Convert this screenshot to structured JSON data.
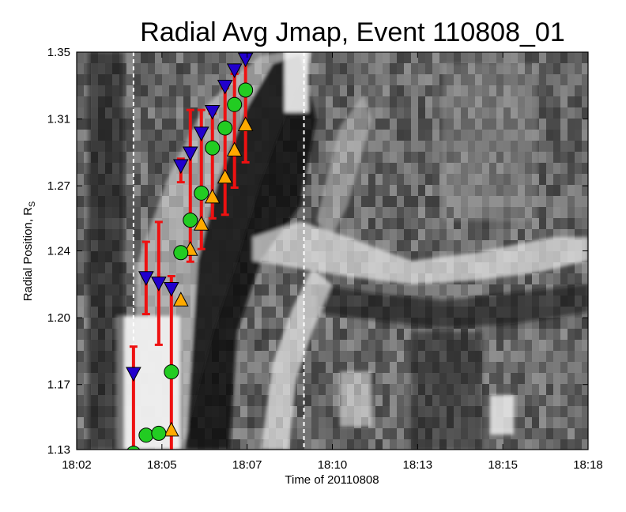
{
  "chart_data": {
    "type": "scatter",
    "title": "Radial Avg Jmap, Event 110808_01",
    "xlabel": "Time of 20110808",
    "ylabel": "Radial Position, R",
    "ylabel_subscript": "S",
    "xlim_minutes": [
      0,
      16
    ],
    "ylim": [
      1.13,
      1.35
    ],
    "x_ticks": [
      {
        "label": "18:02",
        "t": 0
      },
      {
        "label": "18:05",
        "t": 2.7
      },
      {
        "label": "18:07",
        "t": 5.4
      },
      {
        "label": "18:10",
        "t": 8.1
      },
      {
        "label": "18:13",
        "t": 10.8
      },
      {
        "label": "18:15",
        "t": 13.5
      },
      {
        "label": "18:18",
        "t": 16.2
      }
    ],
    "y_ticks": [
      {
        "label": "1.35",
        "v": 1.35
      },
      {
        "label": "1.31",
        "v": 1.313
      },
      {
        "label": "1.27",
        "v": 1.276
      },
      {
        "label": "1.24",
        "v": 1.24
      },
      {
        "label": "1.20",
        "v": 1.203
      },
      {
        "label": "1.17",
        "v": 1.166
      },
      {
        "label": "1.13",
        "v": 1.13
      }
    ],
    "vlines_minutes": [
      1.8,
      7.2
    ],
    "background": "grayscale jmap image",
    "series": [
      {
        "marker": "triangle-down",
        "color": "#2200cc",
        "points": [
          {
            "t": 1.8,
            "y": 1.172
          },
          {
            "t": 2.2,
            "y": 1.225
          },
          {
            "t": 2.6,
            "y": 1.222
          },
          {
            "t": 3.0,
            "y": 1.219
          },
          {
            "t": 3.3,
            "y": 1.287
          },
          {
            "t": 3.6,
            "y": 1.294
          },
          {
            "t": 3.95,
            "y": 1.305
          },
          {
            "t": 4.3,
            "y": 1.317
          },
          {
            "t": 4.7,
            "y": 1.331
          },
          {
            "t": 5.0,
            "y": 1.34
          },
          {
            "t": 5.35,
            "y": 1.346
          }
        ]
      },
      {
        "marker": "circle",
        "color": "#22cc22",
        "points": [
          {
            "t": 1.8,
            "y": 1.128,
            "lo": 1.128,
            "hi": 1.186
          },
          {
            "t": 2.2,
            "y": 1.138,
            "lo": 1.129,
            "hi": 1.143
          },
          {
            "t": 2.6,
            "y": 1.139,
            "lo": 1.129,
            "hi": 1.142
          },
          {
            "t": 3.0,
            "y": 1.173,
            "lo": 1.129,
            "hi": 1.225
          },
          {
            "t": 3.3,
            "y": 1.239,
            "lo": 1.235,
            "hi": 1.242
          },
          {
            "t": 3.6,
            "y": 1.257,
            "lo": 1.234,
            "hi": 1.316
          },
          {
            "t": 3.95,
            "y": 1.272,
            "lo": 1.241,
            "hi": 1.317
          },
          {
            "t": 4.3,
            "y": 1.297,
            "lo": 1.258,
            "hi": 1.315
          },
          {
            "t": 4.7,
            "y": 1.308,
            "lo": 1.26,
            "hi": 1.329
          },
          {
            "t": 5.0,
            "y": 1.321,
            "lo": 1.275,
            "hi": 1.337
          },
          {
            "t": 5.35,
            "y": 1.329,
            "lo": 1.289,
            "hi": 1.346
          }
        ]
      },
      {
        "marker": "triangle-up",
        "color": "#ffaa00",
        "points": [
          {
            "t": 3.0,
            "y": 1.141
          },
          {
            "t": 3.3,
            "y": 1.213
          },
          {
            "t": 3.6,
            "y": 1.241
          },
          {
            "t": 3.95,
            "y": 1.255
          },
          {
            "t": 4.3,
            "y": 1.27
          },
          {
            "t": 4.7,
            "y": 1.281
          },
          {
            "t": 5.0,
            "y": 1.296
          },
          {
            "t": 5.35,
            "y": 1.31
          }
        ]
      }
    ],
    "error_bars": [
      {
        "t": 1.8,
        "lo": 1.128,
        "hi": 1.187
      },
      {
        "t": 2.2,
        "lo": 1.205,
        "hi": 1.245
      },
      {
        "t": 2.6,
        "lo": 1.188,
        "hi": 1.256
      },
      {
        "t": 3.0,
        "lo": 1.128,
        "hi": 1.226
      },
      {
        "t": 3.3,
        "lo": 1.278,
        "hi": 1.291
      },
      {
        "t": 3.6,
        "lo": 1.234,
        "hi": 1.318
      },
      {
        "t": 3.95,
        "lo": 1.241,
        "hi": 1.318
      },
      {
        "t": 4.3,
        "lo": 1.258,
        "hi": 1.316
      },
      {
        "t": 4.7,
        "lo": 1.26,
        "hi": 1.33
      },
      {
        "t": 5.0,
        "lo": 1.275,
        "hi": 1.338
      },
      {
        "t": 5.35,
        "lo": 1.289,
        "hi": 1.347
      }
    ],
    "error_bar_color": "#ee1111"
  }
}
